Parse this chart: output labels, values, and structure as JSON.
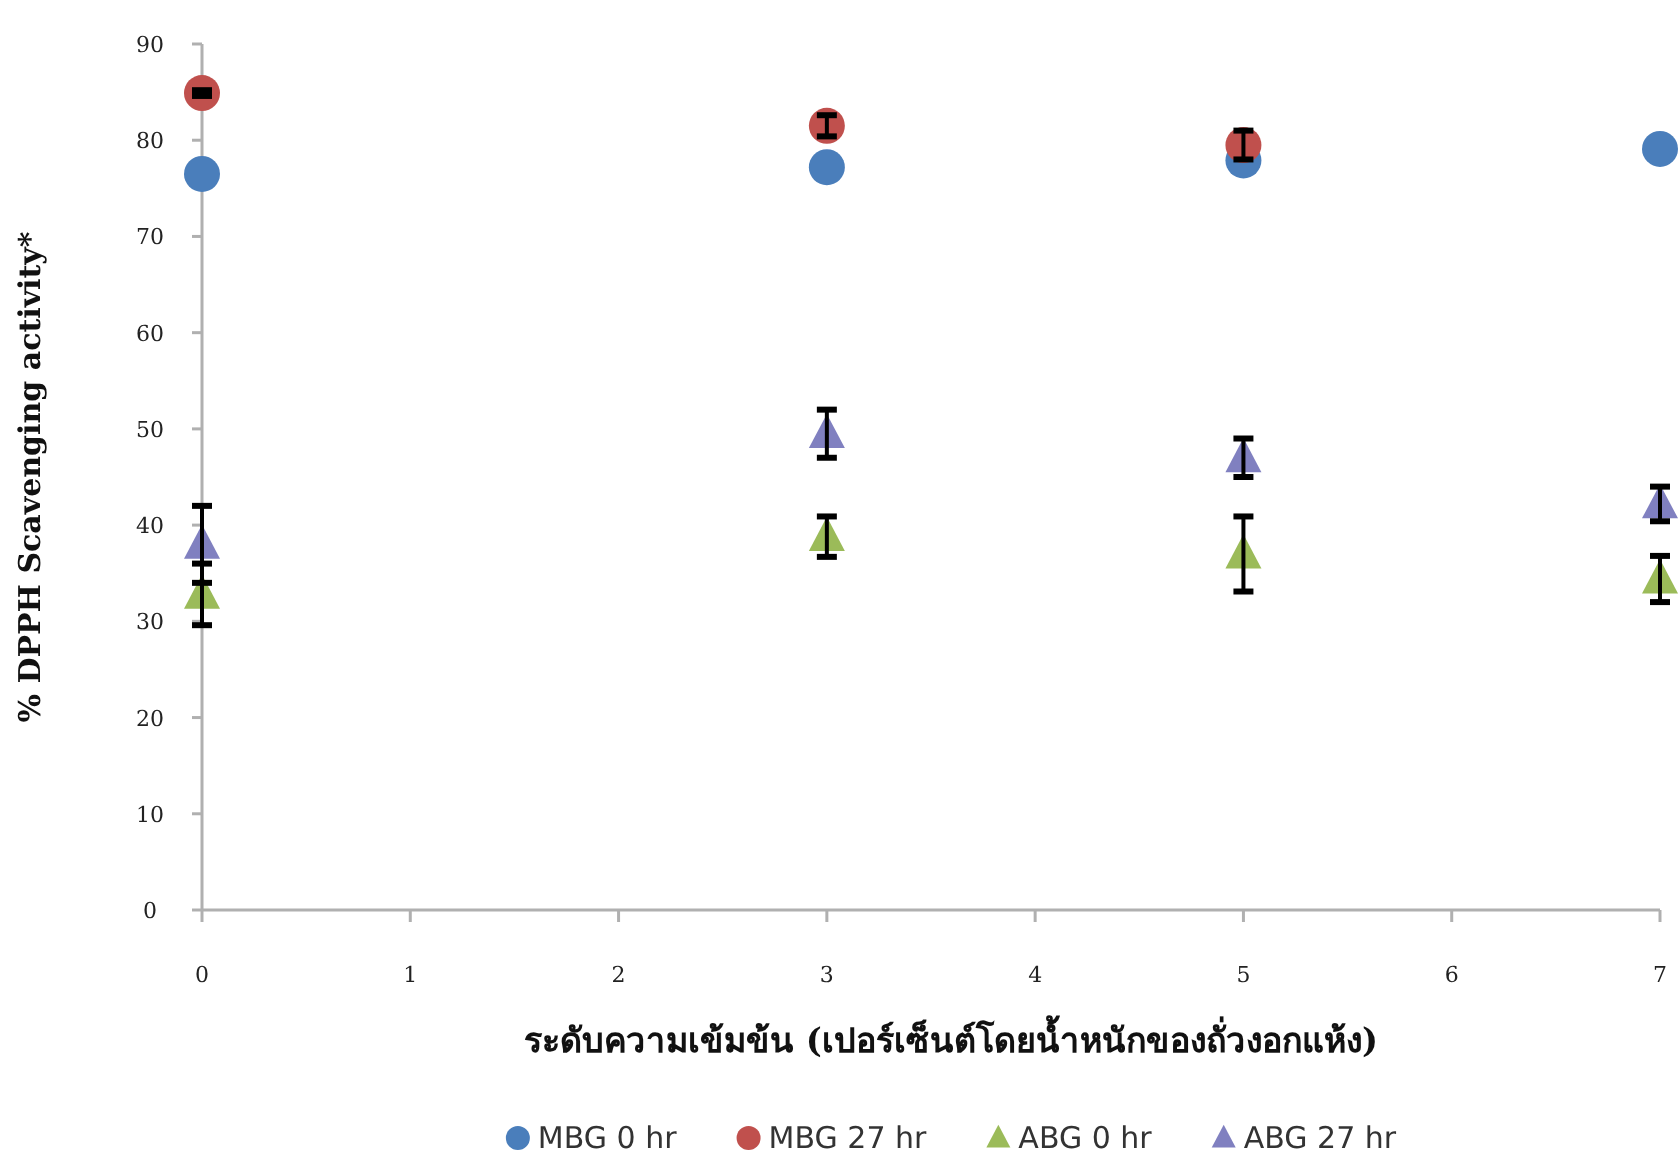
{
  "chart_data": {
    "type": "scatter",
    "ylabel": "% DPPH Scavenging activity*",
    "xlabel": "ระดับความเข้มข้น (เปอร์เซ็นต์โดยน้ำหนักของถั่วงอกแห้ง)",
    "x": [
      0,
      3,
      5,
      7
    ],
    "series": [
      {
        "name": "MBG 0 hr",
        "color": "#4a7ebb",
        "marker": "circle",
        "values": [
          76.5,
          77.2,
          77.9,
          79.1
        ]
      },
      {
        "name": "MBG 27 hr",
        "color": "#c0504d",
        "marker": "circle",
        "values": [
          84.9,
          81.5,
          79.5,
          null
        ],
        "errors": [
          0.3,
          1.1,
          1.5,
          null
        ]
      },
      {
        "name": "ABG 0 hr",
        "color": "#9bbb59",
        "marker": "triangle",
        "values": [
          32.8,
          38.8,
          37,
          34.4
        ],
        "errors": [
          3.2,
          2.1,
          3.9,
          2.4
        ]
      },
      {
        "name": "ABG 27 hr",
        "color": "#8080c0",
        "marker": "triangle",
        "values": [
          38,
          49.5,
          47,
          42.2
        ],
        "errors": [
          4,
          2.5,
          2,
          1.8
        ]
      }
    ],
    "xlim": [
      0,
      7
    ],
    "xticks": [
      0,
      1,
      2,
      3,
      4,
      5,
      6,
      7
    ],
    "ylim": [
      0,
      90
    ],
    "yticks": [
      0,
      10,
      20,
      30,
      40,
      50,
      60,
      70,
      80,
      90
    ],
    "grid": false,
    "legend": "bottom"
  }
}
